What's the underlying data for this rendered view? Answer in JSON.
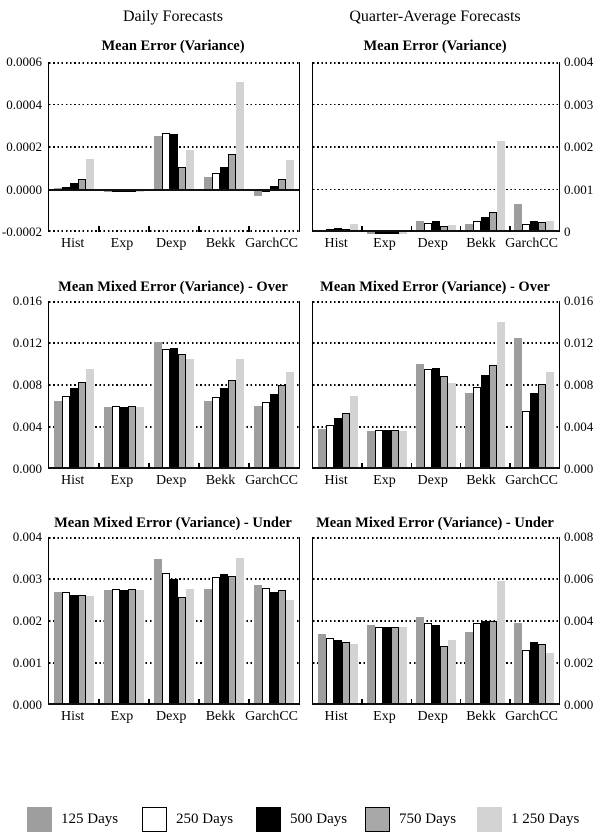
{
  "page": {
    "column_headers": [
      "Daily Forecasts",
      "Quarter-Average Forecasts"
    ]
  },
  "legend": {
    "position": "bottom",
    "items": [
      {
        "label": "125 Days",
        "fill": "#9e9e9e",
        "border": "#9e9e9e"
      },
      {
        "label": "250 Days",
        "fill": "#ffffff",
        "border": "#000000"
      },
      {
        "label": "500 Days",
        "fill": "#000000",
        "border": "#000000"
      },
      {
        "label": "750 Days",
        "fill": "#a8a8a8",
        "border": "#000000"
      },
      {
        "label": "1 250 Days",
        "fill": "#d3d3d3",
        "border": "#d3d3d3"
      }
    ]
  },
  "chart_data": [
    {
      "id": "daily-mean-error",
      "type": "bar",
      "column": "Daily Forecasts",
      "title": "Mean Error (Variance)",
      "xlabel": "",
      "ylabel": "",
      "axis_side": "left",
      "grid": "dotted-horizontal",
      "ylim": [
        -0.0002,
        0.0006
      ],
      "yticks": [
        {
          "value": -0.0002,
          "label": "-0.0002"
        },
        {
          "value": 0.0,
          "label": "0.0000"
        },
        {
          "value": 0.0002,
          "label": "0.0002"
        },
        {
          "value": 0.0004,
          "label": "0.0004"
        },
        {
          "value": 0.0006,
          "label": "0.0006"
        }
      ],
      "categories": [
        "Hist",
        "Exp",
        "Dexp",
        "Bekk",
        "GarchCC"
      ],
      "series": [
        {
          "name": "125 Days",
          "values": [
            5e-06,
            -6e-06,
            0.00025,
            6e-05,
            -3e-05
          ]
        },
        {
          "name": "250 Days",
          "values": [
            1.3e-05,
            -8e-06,
            0.000265,
            8e-05,
            -1e-05
          ]
        },
        {
          "name": "500 Days",
          "values": [
            3e-05,
            -1e-05,
            0.00026,
            0.000105,
            1.5e-05
          ]
        },
        {
          "name": "750 Days",
          "values": [
            5e-05,
            -8e-06,
            0.000105,
            0.000165,
            5e-05
          ]
        },
        {
          "name": "1 250 Days",
          "values": [
            0.000145,
            -6e-06,
            0.000185,
            0.000505,
            0.00014
          ]
        }
      ]
    },
    {
      "id": "quarter-mean-error",
      "type": "bar",
      "column": "Quarter-Average Forecasts",
      "title": "Mean Error (Variance)",
      "xlabel": "",
      "ylabel": "",
      "axis_side": "right",
      "grid": "dotted-horizontal",
      "ylim": [
        0,
        0.004
      ],
      "yticks": [
        {
          "value": 0,
          "label": "0"
        },
        {
          "value": 0.001,
          "label": "0.001"
        },
        {
          "value": 0.002,
          "label": "0.002"
        },
        {
          "value": 0.003,
          "label": "0.003"
        },
        {
          "value": 0.004,
          "label": "0.004"
        }
      ],
      "categories": [
        "Hist",
        "Exp",
        "Dexp",
        "Bekk",
        "GarchCC"
      ],
      "series": [
        {
          "name": "125 Days",
          "values": [
            5e-05,
            1e-05,
            0.00026,
            0.0002,
            0.00066
          ]
        },
        {
          "name": "250 Days",
          "values": [
            6e-05,
            1e-05,
            0.00022,
            0.00025,
            0.00018
          ]
        },
        {
          "name": "500 Days",
          "values": [
            0.0001,
            1e-05,
            0.00027,
            0.00036,
            0.00026
          ]
        },
        {
          "name": "750 Days",
          "values": [
            8e-05,
            1e-05,
            0.00013,
            0.00046,
            0.00023
          ]
        },
        {
          "name": "1 250 Days",
          "values": [
            0.00018,
            1e-05,
            0.00016,
            0.00215,
            0.00026
          ]
        }
      ]
    },
    {
      "id": "daily-mixed-over",
      "type": "bar",
      "column": "Daily Forecasts",
      "title": "Mean Mixed Error (Variance) - Over",
      "xlabel": "",
      "ylabel": "",
      "axis_side": "left",
      "grid": "dotted-horizontal",
      "ylim": [
        0,
        0.016
      ],
      "yticks": [
        {
          "value": 0.0,
          "label": "0.000"
        },
        {
          "value": 0.004,
          "label": "0.004"
        },
        {
          "value": 0.008,
          "label": "0.008"
        },
        {
          "value": 0.012,
          "label": "0.012"
        },
        {
          "value": 0.016,
          "label": "0.016"
        }
      ],
      "categories": [
        "Hist",
        "Exp",
        "Dexp",
        "Bekk",
        "GarchCC"
      ],
      "series": [
        {
          "name": "125 Days",
          "values": [
            0.0065,
            0.0059,
            0.0121,
            0.0065,
            0.006
          ]
        },
        {
          "name": "250 Days",
          "values": [
            0.007,
            0.006,
            0.0114,
            0.0069,
            0.0064
          ]
        },
        {
          "name": "500 Days",
          "values": [
            0.0077,
            0.0059,
            0.0115,
            0.0077,
            0.0071
          ]
        },
        {
          "name": "750 Days",
          "values": [
            0.0083,
            0.006,
            0.011,
            0.0085,
            0.008
          ]
        },
        {
          "name": "1 250 Days",
          "values": [
            0.0095,
            0.0059,
            0.0105,
            0.0105,
            0.0092
          ]
        }
      ]
    },
    {
      "id": "quarter-mixed-over",
      "type": "bar",
      "column": "Quarter-Average Forecasts",
      "title": "Mean Mixed Error (Variance) - Over",
      "xlabel": "",
      "ylabel": "",
      "axis_side": "right",
      "grid": "dotted-horizontal",
      "ylim": [
        0,
        0.016
      ],
      "yticks": [
        {
          "value": 0.0,
          "label": "0.000"
        },
        {
          "value": 0.004,
          "label": "0.004"
        },
        {
          "value": 0.008,
          "label": "0.008"
        },
        {
          "value": 0.012,
          "label": "0.012"
        },
        {
          "value": 0.016,
          "label": "0.016"
        }
      ],
      "categories": [
        "Hist",
        "Exp",
        "Dexp",
        "Bekk",
        "GarchCC"
      ],
      "series": [
        {
          "name": "125 Days",
          "values": [
            0.0038,
            0.0036,
            0.01,
            0.0072,
            0.0125
          ]
        },
        {
          "name": "250 Days",
          "values": [
            0.0042,
            0.0037,
            0.0095,
            0.0078,
            0.0055
          ]
        },
        {
          "name": "500 Days",
          "values": [
            0.0049,
            0.0037,
            0.0096,
            0.009,
            0.0072
          ]
        },
        {
          "name": "750 Days",
          "values": [
            0.0053,
            0.0037,
            0.0089,
            0.0099,
            0.0081
          ]
        },
        {
          "name": "1 250 Days",
          "values": [
            0.007,
            0.0036,
            0.0082,
            0.014,
            0.0092
          ]
        }
      ]
    },
    {
      "id": "daily-mixed-under",
      "type": "bar",
      "column": "Daily Forecasts",
      "title": "Mean Mixed Error (Variance) - Under",
      "xlabel": "",
      "ylabel": "",
      "axis_side": "left",
      "grid": "dotted-horizontal",
      "ylim": [
        0,
        0.004
      ],
      "yticks": [
        {
          "value": 0.0,
          "label": "0.000"
        },
        {
          "value": 0.001,
          "label": "0.001"
        },
        {
          "value": 0.002,
          "label": "0.002"
        },
        {
          "value": 0.003,
          "label": "0.003"
        },
        {
          "value": 0.004,
          "label": "0.004"
        }
      ],
      "categories": [
        "Hist",
        "Exp",
        "Dexp",
        "Bekk",
        "GarchCC"
      ],
      "series": [
        {
          "name": "125 Days",
          "values": [
            0.0027,
            0.00275,
            0.00347,
            0.00277,
            0.00285
          ]
        },
        {
          "name": "250 Days",
          "values": [
            0.00268,
            0.00277,
            0.00315,
            0.00305,
            0.00278
          ]
        },
        {
          "name": "500 Days",
          "values": [
            0.00262,
            0.00274,
            0.00301,
            0.00312,
            0.0027
          ]
        },
        {
          "name": "750 Days",
          "values": [
            0.00262,
            0.00277,
            0.00258,
            0.00307,
            0.00274
          ]
        },
        {
          "name": "1 250 Days",
          "values": [
            0.0026,
            0.00274,
            0.00277,
            0.00351,
            0.0025
          ]
        }
      ]
    },
    {
      "id": "quarter-mixed-under",
      "type": "bar",
      "column": "Quarter-Average Forecasts",
      "title": "Mean Mixed Error (Variance) - Under",
      "xlabel": "",
      "ylabel": "",
      "axis_side": "right",
      "grid": "dotted-horizontal",
      "ylim": [
        0,
        0.008
      ],
      "yticks": [
        {
          "value": 0.0,
          "label": "0.000"
        },
        {
          "value": 0.002,
          "label": "0.002"
        },
        {
          "value": 0.004,
          "label": "0.004"
        },
        {
          "value": 0.006,
          "label": "0.006"
        },
        {
          "value": 0.008,
          "label": "0.008"
        }
      ],
      "categories": [
        "Hist",
        "Exp",
        "Dexp",
        "Bekk",
        "GarchCC"
      ],
      "series": [
        {
          "name": "125 Days",
          "values": [
            0.0034,
            0.0038,
            0.0042,
            0.0035,
            0.0039
          ]
        },
        {
          "name": "250 Days",
          "values": [
            0.0032,
            0.0037,
            0.0039,
            0.0039,
            0.0026
          ]
        },
        {
          "name": "500 Days",
          "values": [
            0.0031,
            0.0037,
            0.0038,
            0.004,
            0.003
          ]
        },
        {
          "name": "750 Days",
          "values": [
            0.003,
            0.0037,
            0.0028,
            0.004,
            0.0029
          ]
        },
        {
          "name": "1 250 Days",
          "values": [
            0.0029,
            0.0037,
            0.0031,
            0.0059,
            0.0025
          ]
        }
      ]
    }
  ]
}
